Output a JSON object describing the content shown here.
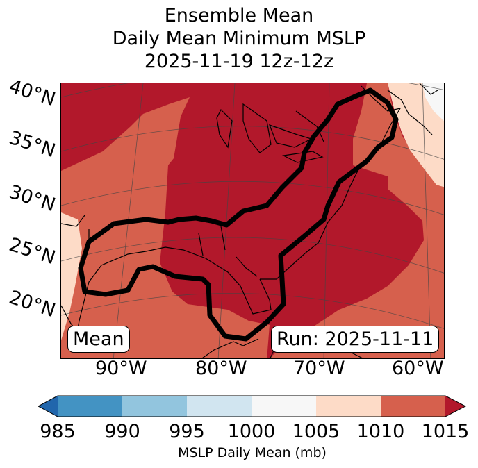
{
  "title": {
    "line1": "Ensemble Mean",
    "line2": "Daily Mean Minimum MSLP",
    "line3": "2025-11-19 12z-12z"
  },
  "map": {
    "lat_labels": [
      "40°N",
      "35°N",
      "30°N",
      "25°N",
      "20°N"
    ],
    "lon_labels": [
      "90°W",
      "80°W",
      "70°W",
      "60°W"
    ],
    "mean_badge": "Mean",
    "run_badge": "Run: 2025-11-11"
  },
  "colorbar": {
    "ticks": [
      "985",
      "990",
      "995",
      "1000",
      "1005",
      "1010",
      "1015"
    ],
    "label": "MSLP Daily Mean (mb)",
    "colors": [
      "#2166ac",
      "#4393c3",
      "#92c5de",
      "#d1e5f0",
      "#f7f7f7",
      "#fddbc7",
      "#d6604d",
      "#b2182b"
    ]
  },
  "fill_colors": {
    "c1015": "#b2182b",
    "c1010": "#d6604d",
    "c1005": "#fddbc7",
    "c1000": "#f7f7f7"
  }
}
